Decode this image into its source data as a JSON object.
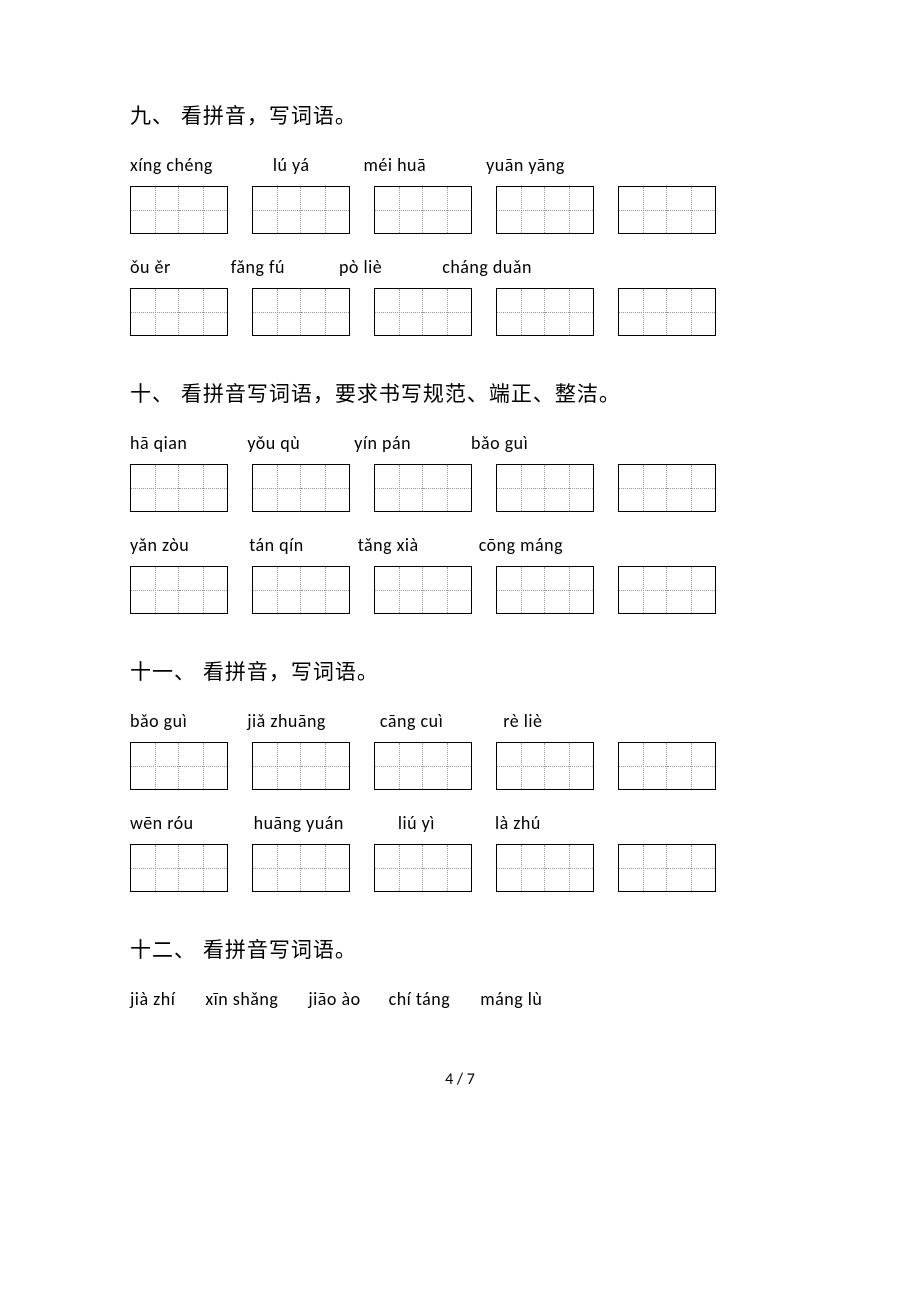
{
  "sections": [
    {
      "heading": "九、 看拼音，写词语。",
      "rows": [
        {
          "pinyin": [
            "xíng  chéng",
            "lú    yá",
            "méi   huā",
            "yuān  yāng"
          ],
          "boxes": 5
        },
        {
          "pinyin": [
            "ǒu     ěr",
            "fǎng   fú",
            "pò    liè",
            "cháng  duǎn"
          ],
          "boxes": 5
        }
      ]
    },
    {
      "heading": "十、 看拼音写词语，要求书写规范、端正、整洁。",
      "rows": [
        {
          "pinyin": [
            "hā    qian",
            "yǒu   qù",
            "yín    pán",
            "bǎo   guì"
          ],
          "boxes": 5
        },
        {
          "pinyin": [
            "yǎn   zòu",
            "tán   qín",
            "tǎng   xià",
            "cōng  máng"
          ],
          "boxes": 5
        }
      ]
    },
    {
      "heading": "十一、 看拼音，写词语。",
      "rows": [
        {
          "pinyin": [
            "bǎo   guì",
            "jiǎ  zhuāng",
            "cāng   cuì",
            "rè    liè"
          ],
          "boxes": 5
        },
        {
          "pinyin": [
            "wēn   róu",
            "huāng yuán",
            "liú    yì",
            "là    zhú"
          ],
          "boxes": 5
        }
      ]
    },
    {
      "heading": "十二、 看拼音写词语。",
      "rows": [
        {
          "pinyin": [
            "jià    zhí",
            "xīn shǎng",
            "jiāo   ào",
            "chí   táng",
            "máng   lù"
          ],
          "boxes": 0
        }
      ]
    }
  ],
  "page_number": "4 / 7",
  "gaps": {
    "four_item": [
      60,
      54,
      60
    ],
    "five_item": [
      30,
      30,
      28,
      30
    ]
  }
}
